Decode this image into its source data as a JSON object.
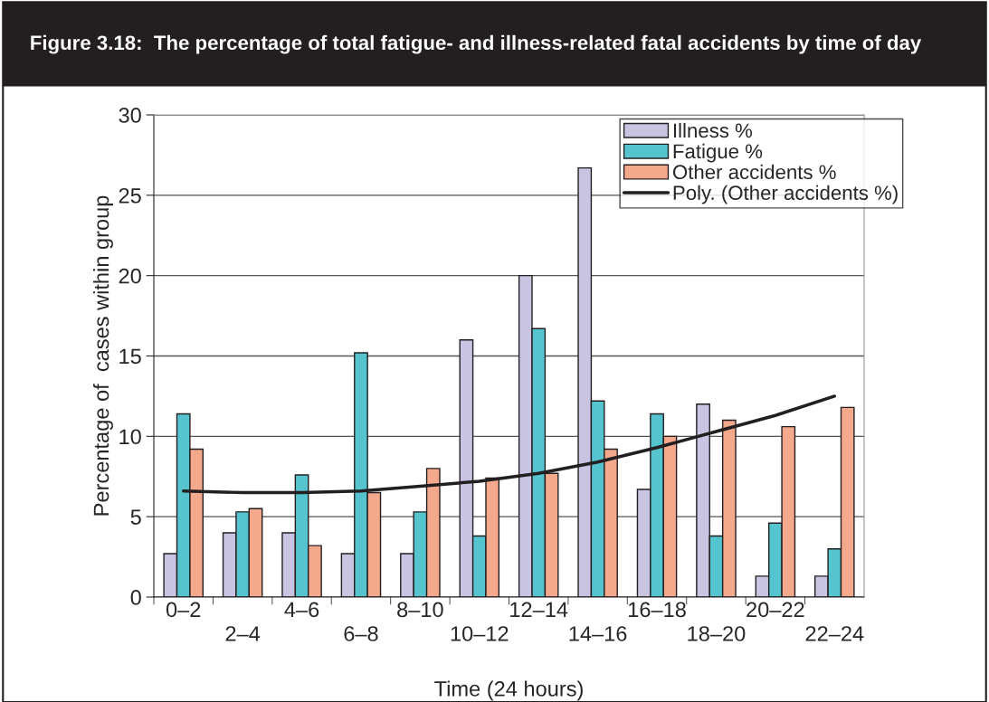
{
  "chart_data": {
    "type": "bar",
    "title": "Figure 3.18:  The percentage of total fatigue- and illness-related fatal accidents by time of day",
    "xlabel": "Time (24 hours)",
    "ylabel": "Percentage of  cases within group",
    "categories": [
      "0–2",
      "2–4",
      "4–6",
      "6–8",
      "8–10",
      "10–12",
      "12–14",
      "14–16",
      "16–18",
      "18–20",
      "20–22",
      "22–24"
    ],
    "series": [
      {
        "name": "Illness %",
        "color": "#c8c4e2",
        "values": [
          2.7,
          4.0,
          4.0,
          2.7,
          2.7,
          16.0,
          20.0,
          26.7,
          6.7,
          12.0,
          1.3,
          1.3
        ]
      },
      {
        "name": "Fatigue %",
        "color": "#55c4cf",
        "values": [
          11.4,
          5.3,
          7.6,
          15.2,
          5.3,
          3.8,
          16.7,
          12.2,
          11.4,
          3.8,
          4.6,
          3.0
        ]
      },
      {
        "name": "Other accidents %",
        "color": "#f5a98c",
        "values": [
          9.2,
          5.5,
          3.2,
          6.5,
          8.0,
          7.4,
          7.7,
          9.2,
          10.0,
          11.0,
          10.6,
          11.8
        ]
      },
      {
        "name": "Poly. (Other accidents %)",
        "type": "line",
        "color": "#231f20",
        "values": [
          6.6,
          6.5,
          6.5,
          6.6,
          6.9,
          7.2,
          7.7,
          8.4,
          9.3,
          10.3,
          11.3,
          12.5
        ]
      }
    ],
    "ylim": [
      0,
      30
    ],
    "yticks": [
      0,
      5,
      10,
      15,
      20,
      25,
      30
    ],
    "grid": "y",
    "legend": "top right",
    "line_style": "solid"
  }
}
